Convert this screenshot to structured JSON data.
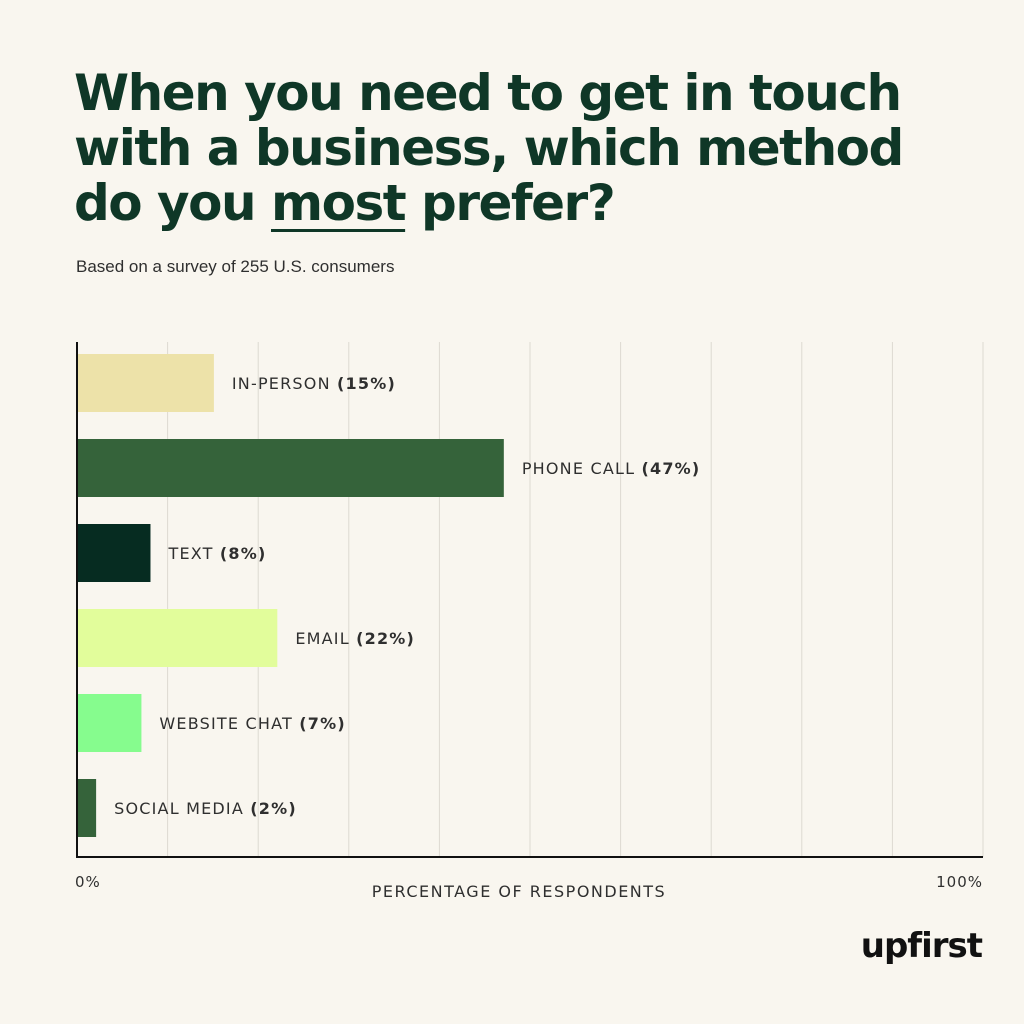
{
  "title": {
    "line1": "When you need to get in touch",
    "line2": "with a business, which method",
    "line3_pre": "do you ",
    "line3_emph": "most",
    "line3_post": " prefer?"
  },
  "subtitle": "Based on a survey of 255 U.S. consumers",
  "logo": "upfirst",
  "chart_data": {
    "type": "bar",
    "orientation": "horizontal",
    "categories": [
      "IN-PERSON",
      "PHONE CALL",
      "TEXT",
      "EMAIL",
      "WEBSITE CHAT",
      "SOCIAL MEDIA"
    ],
    "values": [
      15,
      47,
      8,
      22,
      7,
      2
    ],
    "value_labels": [
      "(15%)",
      "(47%)",
      "(8%)",
      "(22%)",
      "(7%)",
      "(2%)"
    ],
    "colors": [
      "#ede2a9",
      "#35633a",
      "#062c21",
      "#e2fd9b",
      "#86fc8e",
      "#35633a"
    ],
    "xlabel": "PERCENTAGE OF RESPONDENTS",
    "xmin_label": "0%",
    "xmax_label": "100%",
    "xlim": [
      0,
      100
    ],
    "grid": true,
    "grid_color": "#dddad1",
    "axis_color": "#111111"
  }
}
